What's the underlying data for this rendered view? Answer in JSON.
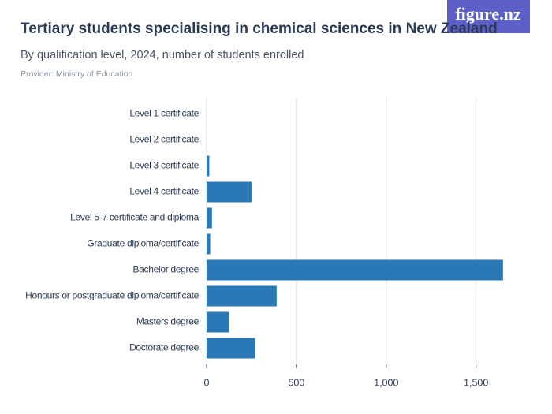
{
  "chart_data": {
    "type": "hbar",
    "title": "Tertiary students specialising in chemical sciences in New Zealand",
    "subtitle": "By qualification level, 2024, number of students enrolled",
    "source": "Provider: Ministry of Education",
    "logo": "figure.nz",
    "categories": [
      "Level 1 certificate",
      "Level 2 certificate",
      "Level 3 certificate",
      "Level 4 certificate",
      "Level 5-7 certificate and diploma",
      "Graduate diploma/certificate",
      "Bachelor degree",
      "Honours or postgraduate diploma/certificate",
      "Masters degree",
      "Doctorate degree"
    ],
    "values": [
      0,
      0,
      15,
      250,
      30,
      20,
      1650,
      390,
      125,
      270
    ],
    "color": "#2a78b5",
    "xlim": [
      0,
      1800
    ],
    "xticks": [
      0,
      500,
      {
        "value": 1000,
        "label": "1,000"
      },
      {
        "value": 1500,
        "label": "1,500"
      }
    ],
    "grid": true
  }
}
